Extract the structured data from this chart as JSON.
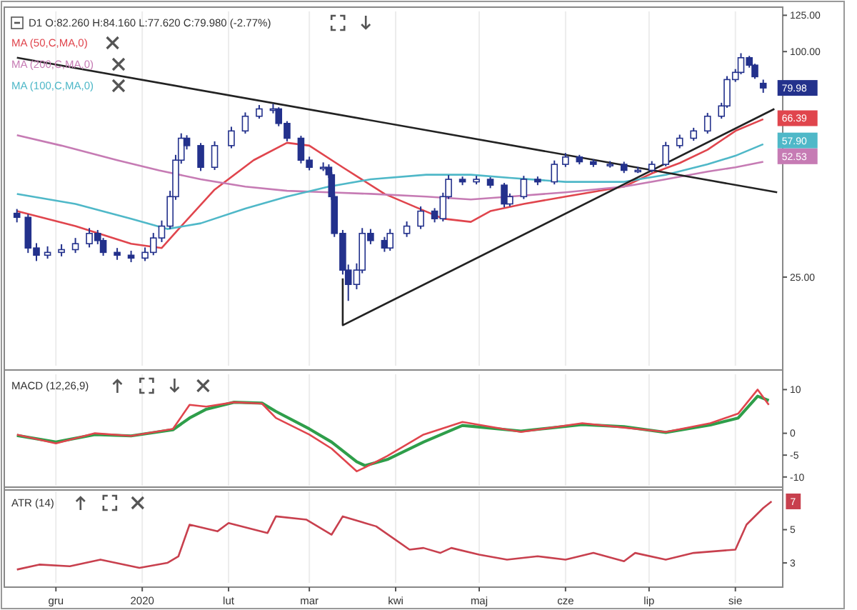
{
  "chart_data": [
    {
      "type": "candlestick",
      "title": "D1 O:82.260 H:84.160 L:77.620 C:79.980 (-2.77%)",
      "color": "#23318c",
      "log": true,
      "grid": "x",
      "legend": "top left",
      "tick_labels": "y",
      "xlim": [
        "2019-11-14",
        "2020-08-18"
      ],
      "ylim": [
        14.5,
        128
      ],
      "yticks": [
        {
          "value": 25,
          "label": "25.00"
        },
        {
          "value": 100,
          "label": "100.00"
        },
        {
          "value": 125,
          "label": "125.00"
        }
      ],
      "x": [
        "2019-11-17",
        "2019-11-21",
        "2019-11-24",
        "2019-11-28",
        "2019-12-03",
        "2019-12-08",
        "2019-12-13",
        "2019-12-16",
        "2019-12-18",
        "2019-12-23",
        "2019-12-28",
        "2020-01-02",
        "2020-01-05",
        "2020-01-08",
        "2020-01-11",
        "2020-01-13",
        "2020-01-15",
        "2020-01-17",
        "2020-01-22",
        "2020-01-27",
        "2020-02-02",
        "2020-02-07",
        "2020-02-12",
        "2020-02-17",
        "2020-02-19",
        "2020-02-22",
        "2020-02-27",
        "2020-03-01",
        "2020-03-06",
        "2020-03-08",
        "2020-03-09",
        "2020-03-10",
        "2020-03-13",
        "2020-03-15",
        "2020-03-18",
        "2020-03-20",
        "2020-03-23",
        "2020-03-28",
        "2020-03-30",
        "2020-04-05",
        "2020-04-10",
        "2020-04-15",
        "2020-04-18",
        "2020-04-20",
        "2020-04-25",
        "2020-04-30",
        "2020-05-05",
        "2020-05-10",
        "2020-05-12",
        "2020-05-17",
        "2020-05-22",
        "2020-05-28",
        "2020-06-01",
        "2020-06-06",
        "2020-06-11",
        "2020-06-17",
        "2020-06-22",
        "2020-06-27",
        "2020-07-02",
        "2020-07-07",
        "2020-07-12",
        "2020-07-17",
        "2020-07-22",
        "2020-07-27",
        "2020-07-29",
        "2020-08-01",
        "2020-08-03",
        "2020-08-06",
        "2020-08-08",
        "2020-08-11"
      ],
      "ohlc": [
        [
          37.0,
          38.0,
          35.0,
          36.1
        ],
        [
          36.1,
          36.8,
          29.0,
          29.9
        ],
        [
          29.9,
          30.8,
          27.6,
          28.6
        ],
        [
          28.6,
          30.2,
          28.0,
          29.1
        ],
        [
          29.1,
          30.6,
          28.4,
          29.6
        ],
        [
          29.6,
          31.8,
          29.0,
          30.7
        ],
        [
          30.7,
          33.8,
          30.0,
          32.7
        ],
        [
          32.7,
          33.4,
          30.6,
          31.3
        ],
        [
          31.3,
          31.8,
          28.5,
          29.1
        ],
        [
          29.1,
          29.9,
          27.8,
          28.6
        ],
        [
          28.6,
          29.4,
          27.4,
          28.1
        ],
        [
          28.1,
          30.0,
          27.6,
          29.1
        ],
        [
          29.1,
          32.8,
          28.6,
          31.8
        ],
        [
          31.8,
          35.4,
          31.0,
          34.2
        ],
        [
          34.2,
          42.5,
          33.6,
          41.0
        ],
        [
          41.0,
          53.0,
          40.2,
          51.3
        ],
        [
          51.3,
          60.5,
          50.2,
          58.7
        ],
        [
          58.7,
          59.8,
          54.8,
          56.1
        ],
        [
          56.1,
          57.0,
          48.0,
          49.1
        ],
        [
          49.1,
          57.6,
          48.3,
          56.1
        ],
        [
          56.1,
          63.0,
          55.2,
          61.4
        ],
        [
          61.4,
          68.8,
          60.4,
          67.2
        ],
        [
          67.2,
          72.0,
          66.2,
          70.3
        ],
        [
          70.3,
          72.5,
          68.4,
          70.3
        ],
        [
          70.3,
          71.0,
          63.2,
          64.3
        ],
        [
          64.3,
          65.2,
          57.6,
          58.7
        ],
        [
          58.7,
          59.6,
          50.3,
          51.3
        ],
        [
          51.3,
          52.4,
          48.2,
          49.1
        ],
        [
          49.1,
          50.6,
          48.0,
          49.1
        ],
        [
          49.1,
          50.0,
          46.0,
          46.9
        ],
        [
          46.9,
          47.6,
          40.2,
          41.0
        ],
        [
          41.0,
          41.8,
          32.0,
          32.7
        ],
        [
          32.7,
          33.4,
          25.4,
          26.1
        ],
        [
          26.1,
          27.0,
          21.6,
          23.9
        ],
        [
          23.9,
          27.2,
          23.2,
          26.1
        ],
        [
          26.1,
          33.8,
          25.6,
          32.7
        ],
        [
          32.7,
          33.6,
          30.6,
          31.3
        ],
        [
          31.3,
          32.0,
          29.2,
          29.9
        ],
        [
          29.9,
          33.6,
          29.4,
          32.7
        ],
        [
          32.7,
          35.2,
          32.0,
          34.2
        ],
        [
          34.2,
          38.6,
          33.6,
          37.5
        ],
        [
          37.5,
          38.2,
          35.0,
          35.8
        ],
        [
          35.8,
          42.0,
          35.2,
          41.0
        ],
        [
          41.0,
          46.8,
          40.4,
          45.6
        ],
        [
          45.6,
          46.4,
          44.0,
          44.9
        ],
        [
          44.9,
          46.6,
          44.2,
          45.6
        ],
        [
          45.6,
          46.2,
          43.2,
          44.0
        ],
        [
          44.0,
          44.6,
          38.4,
          39.2
        ],
        [
          39.2,
          41.8,
          38.6,
          41.0
        ],
        [
          41.0,
          46.6,
          40.4,
          45.6
        ],
        [
          45.6,
          46.4,
          44.0,
          44.9
        ],
        [
          44.9,
          51.2,
          44.2,
          50.0
        ],
        [
          50.0,
          53.6,
          49.2,
          52.3
        ],
        [
          52.3,
          53.0,
          50.0,
          50.8
        ],
        [
          50.8,
          51.6,
          49.2,
          50.0
        ],
        [
          50.0,
          51.0,
          49.0,
          50.0
        ],
        [
          50.0,
          50.8,
          47.4,
          48.2
        ],
        [
          48.2,
          49.2,
          47.4,
          48.2
        ],
        [
          48.2,
          51.0,
          47.6,
          50.0
        ],
        [
          50.0,
          57.4,
          49.4,
          56.1
        ],
        [
          56.1,
          60.0,
          55.2,
          58.7
        ],
        [
          58.7,
          62.6,
          57.8,
          61.4
        ],
        [
          61.4,
          68.6,
          60.4,
          67.2
        ],
        [
          67.2,
          73.0,
          66.2,
          71.6
        ],
        [
          71.6,
          86.0,
          70.8,
          84.2
        ],
        [
          84.2,
          89.8,
          83.0,
          88.0
        ],
        [
          88.0,
          99.0,
          87.0,
          96.3
        ],
        [
          96.3,
          97.4,
          90.6,
          92.0
        ],
        [
          92.0,
          92.8,
          84.6,
          85.7
        ],
        [
          82.26,
          84.16,
          77.62,
          79.98
        ]
      ],
      "series": [
        {
          "type": "line",
          "name": "MA (50,C,MA,0)",
          "color": "#e0454d",
          "x": [
            "2019-11-17",
            "2019-12-08",
            "2019-12-28",
            "2020-01-08",
            "2020-01-15",
            "2020-01-27",
            "2020-02-10",
            "2020-02-22",
            "2020-03-01",
            "2020-03-13",
            "2020-03-28",
            "2020-04-08",
            "2020-04-18",
            "2020-04-28",
            "2020-05-05",
            "2020-05-17",
            "2020-06-01",
            "2020-06-22",
            "2020-07-02",
            "2020-07-12",
            "2020-07-22",
            "2020-08-01",
            "2020-08-11"
          ],
          "values": [
            37.5,
            34.2,
            30.7,
            29.9,
            34.2,
            42.8,
            51.3,
            57.1,
            56.1,
            49.1,
            41.7,
            38.5,
            35.8,
            35.1,
            37.5,
            39.2,
            41.0,
            43.6,
            47.3,
            50.4,
            54.7,
            61.4,
            66.0
          ]
        },
        {
          "type": "line",
          "name": "MA (200,C,MA,0)",
          "color": "#c67bb4",
          "x": [
            "2019-11-17",
            "2019-12-03",
            "2019-12-23",
            "2020-01-07",
            "2020-01-22",
            "2020-02-07",
            "2020-02-22",
            "2020-03-08",
            "2020-03-23",
            "2020-04-12",
            "2020-04-28",
            "2020-05-12",
            "2020-06-01",
            "2020-06-22",
            "2020-07-07",
            "2020-07-22",
            "2020-08-01",
            "2020-08-11"
          ],
          "values": [
            59.8,
            56.1,
            51.3,
            48.2,
            45.6,
            43.6,
            42.5,
            42.1,
            41.7,
            41.0,
            40.3,
            41.0,
            42.1,
            43.6,
            45.6,
            47.8,
            49.1,
            50.8
          ]
        },
        {
          "type": "line",
          "name": "MA (100,C,MA,0)",
          "color": "#4fb8c8",
          "x": [
            "2019-11-17",
            "2019-12-08",
            "2019-12-28",
            "2020-01-10",
            "2020-01-22",
            "2020-02-07",
            "2020-02-22",
            "2020-03-08",
            "2020-03-23",
            "2020-04-12",
            "2020-04-28",
            "2020-05-12",
            "2020-06-01",
            "2020-06-22",
            "2020-07-07",
            "2020-07-22",
            "2020-08-01",
            "2020-08-11"
          ],
          "values": [
            41.7,
            39.2,
            35.8,
            33.6,
            34.8,
            38.1,
            41.0,
            43.6,
            45.6,
            46.9,
            46.9,
            46.0,
            44.9,
            44.9,
            46.9,
            50.0,
            52.7,
            56.6
          ]
        },
        {
          "type": "line",
          "color": "#222222",
          "x": [
            "2019-11-17",
            "2020-08-16"
          ],
          "values": [
            96.3,
            42.1
          ]
        },
        {
          "type": "line",
          "color": "#222222",
          "x": [
            "2020-03-13",
            "2020-03-13",
            "2020-08-15"
          ],
          "values": [
            24.8,
            18.6,
            70.3
          ]
        }
      ],
      "annotations": [
        {
          "text": "79.98",
          "x": "2020-08-11",
          "y": 79.98
        },
        {
          "text": "66.39",
          "x": "2020-08-11",
          "y": 66.39
        },
        {
          "text": "57.90",
          "x": "2020-08-11",
          "y": 57.9
        },
        {
          "text": "52.53",
          "x": "2020-08-11",
          "y": 52.53
        }
      ]
    },
    {
      "type": "line",
      "title": "MACD (12,26,9)",
      "grid": "x",
      "tick_labels": "y",
      "xlim": [
        "2019-11-14",
        "2020-08-18"
      ],
      "ylim": [
        -12,
        13.5
      ],
      "yticks": [
        10,
        0,
        -5,
        -10
      ],
      "x": [
        "2019-11-17",
        "2019-12-01",
        "2019-12-15",
        "2019-12-28",
        "2020-01-12",
        "2020-01-18",
        "2020-01-24",
        "2020-02-03",
        "2020-02-13",
        "2020-02-18",
        "2020-03-01",
        "2020-03-09",
        "2020-03-18",
        "2020-03-21",
        "2020-03-29",
        "2020-04-11",
        "2020-04-25",
        "2020-05-16",
        "2020-06-07",
        "2020-06-22",
        "2020-07-07",
        "2020-07-23",
        "2020-08-02",
        "2020-08-09",
        "2020-08-13"
      ],
      "series": [
        {
          "color": "#2e9e4a",
          "values": [
            -0.5,
            -2,
            -0.3,
            -0.6,
            0.8,
            3.5,
            5.5,
            7.1,
            6.9,
            5,
            1,
            -2,
            -6.5,
            -7.4,
            -6,
            -2,
            1.8,
            0.5,
            2,
            1.5,
            0.2,
            1.9,
            3.5,
            8.5,
            7.5
          ]
        },
        {
          "color": "#e0454d",
          "values": [
            -0.3,
            -2.3,
            0,
            -0.6,
            1,
            6.5,
            6.1,
            7.1,
            6.8,
            3.5,
            -0.3,
            -3.5,
            -8.7,
            -7.8,
            -5.2,
            -0.3,
            2.6,
            0.3,
            2.3,
            1.3,
            0.3,
            2.3,
            4.5,
            10,
            6.5
          ]
        }
      ]
    },
    {
      "type": "line",
      "title": "ATR (14)",
      "grid": "x",
      "xlim": [
        "2019-11-14",
        "2020-08-18"
      ],
      "ylim": [
        1.8,
        7.3
      ],
      "yticks": [
        3,
        5
      ],
      "xticks": [
        {
          "value": "2019-12-01",
          "label": "gru"
        },
        {
          "value": "2020-01-01",
          "label": "2020"
        },
        {
          "value": "2020-02-01",
          "label": "lut"
        },
        {
          "value": "2020-03-01",
          "label": "mar"
        },
        {
          "value": "2020-04-01",
          "label": "kwi"
        },
        {
          "value": "2020-05-01",
          "label": "maj"
        },
        {
          "value": "2020-06-01",
          "label": "cze"
        },
        {
          "value": "2020-07-01",
          "label": "lip"
        },
        {
          "value": "2020-08-01",
          "label": "sie"
        }
      ],
      "x": [
        "2019-11-17",
        "2019-11-25",
        "2019-12-06",
        "2019-12-17",
        "2019-12-31",
        "2020-01-10",
        "2020-01-14",
        "2020-01-18",
        "2020-01-28",
        "2020-02-01",
        "2020-02-15",
        "2020-02-18",
        "2020-02-29",
        "2020-03-09",
        "2020-03-13",
        "2020-03-25",
        "2020-04-06",
        "2020-04-11",
        "2020-04-17",
        "2020-04-21",
        "2020-05-01",
        "2020-05-11",
        "2020-05-22",
        "2020-06-01",
        "2020-06-11",
        "2020-06-22",
        "2020-06-26",
        "2020-07-07",
        "2020-07-17",
        "2020-08-01",
        "2020-08-05",
        "2020-08-11",
        "2020-08-14"
      ],
      "series": [
        {
          "color": "#c8404e",
          "values": [
            2.6,
            2.9,
            2.8,
            3.2,
            2.7,
            3.0,
            3.4,
            5.3,
            4.9,
            5.4,
            4.8,
            5.8,
            5.6,
            4.7,
            5.8,
            5.2,
            3.8,
            3.9,
            3.6,
            3.9,
            3.5,
            3.2,
            3.4,
            3.2,
            3.6,
            3.1,
            3.6,
            3.2,
            3.6,
            3.8,
            5.3,
            6.3,
            6.7
          ]
        }
      ],
      "annotations": [
        {
          "text": "7",
          "x": "2020-08-14",
          "y": 6.7
        }
      ]
    }
  ]
}
